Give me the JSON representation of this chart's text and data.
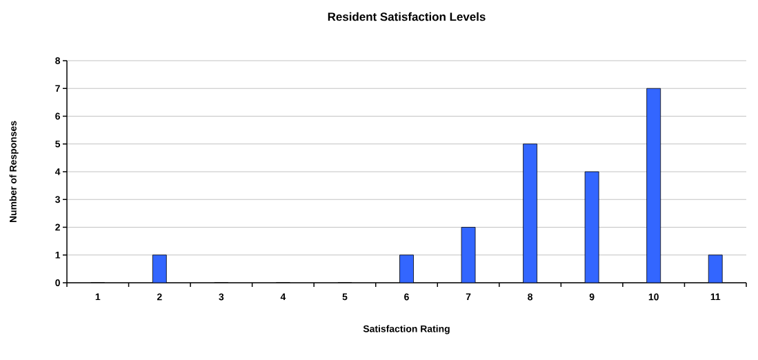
{
  "chart_data": {
    "type": "bar",
    "title": "Resident Satisfaction Levels",
    "xlabel": "Satisfaction Rating",
    "ylabel": "Number of Responses",
    "categories": [
      "1",
      "2",
      "3",
      "4",
      "5",
      "6",
      "7",
      "8",
      "9",
      "10",
      "11"
    ],
    "values": [
      0,
      1,
      0,
      0,
      0,
      1,
      2,
      5,
      4,
      7,
      1
    ],
    "color": "#3366ff",
    "ylim": [
      0,
      8
    ],
    "yticks": [
      0,
      1,
      2,
      3,
      4,
      5,
      6,
      7,
      8
    ],
    "grid": "y"
  }
}
